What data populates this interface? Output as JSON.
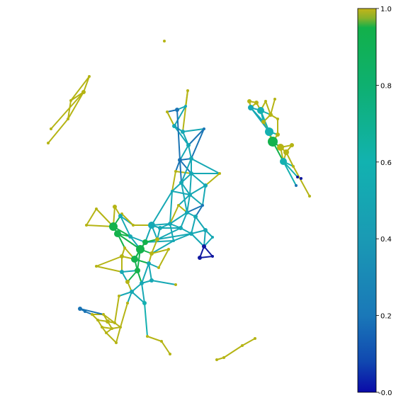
{
  "colorbar": {
    "min_label": "-0.0",
    "max_label": "1.0",
    "range": [
      0,
      1
    ],
    "ticks": [
      {
        "value": 0.2,
        "label": "0.2"
      },
      {
        "value": 0.4,
        "label": "0.4"
      },
      {
        "value": 0.6,
        "label": "0.6"
      },
      {
        "value": 0.8,
        "label": "0.8"
      }
    ],
    "gradient": [
      {
        "at": 0.0,
        "color": "#0a0aa8"
      },
      {
        "at": 0.08,
        "color": "#1048b0"
      },
      {
        "at": 0.2,
        "color": "#1a78b8"
      },
      {
        "at": 0.4,
        "color": "#1a9ab4"
      },
      {
        "at": 0.6,
        "color": "#12b2b0"
      },
      {
        "at": 0.8,
        "color": "#0eb070"
      },
      {
        "at": 0.95,
        "color": "#12b04a"
      },
      {
        "at": 0.975,
        "color": "#88b22a"
      },
      {
        "at": 1.0,
        "color": "#c4b418"
      }
    ]
  },
  "palette": {
    "olive": "#b5b414",
    "teal": "#16a8b4",
    "cyan": "#14b0b0",
    "green": "#14b24c",
    "navy": "#1018a0",
    "blue": "#1a74b4"
  },
  "graph": {
    "description_free": true,
    "nodes": [
      [
        "i1",
        232,
        58,
        "olive",
        2
      ],
      [
        "a1",
        126,
        108,
        "olive",
        2
      ],
      [
        "a2",
        118,
        130,
        "olive",
        3
      ],
      [
        "a3",
        100,
        142,
        "olive",
        2
      ],
      [
        "a4",
        96,
        168,
        "olive",
        2
      ],
      [
        "a5",
        72,
        182,
        "olive",
        2
      ],
      [
        "a6",
        68,
        202,
        "olive",
        2
      ],
      [
        "r1",
        352,
        143,
        "olive",
        3
      ],
      [
        "r2",
        362,
        145,
        "olive",
        3
      ],
      [
        "r3",
        375,
        143,
        "olive",
        2
      ],
      [
        "r4",
        388,
        140,
        "olive",
        2
      ],
      [
        "r5",
        354,
        152,
        "teal",
        4
      ],
      [
        "r6",
        368,
        156,
        "cyan",
        5
      ],
      [
        "r7",
        382,
        162,
        "olive",
        3
      ],
      [
        "r8",
        392,
        168,
        "olive",
        2
      ],
      [
        "r9",
        372,
        172,
        "olive",
        3
      ],
      [
        "r10",
        380,
        186,
        "cyan",
        6
      ],
      [
        "r11",
        392,
        190,
        "olive",
        3
      ],
      [
        "r12",
        385,
        200,
        "green",
        7
      ],
      [
        "r13",
        396,
        208,
        "olive",
        5
      ],
      [
        "r14",
        404,
        215,
        "olive",
        4
      ],
      [
        "r15",
        412,
        205,
        "olive",
        3
      ],
      [
        "r16",
        400,
        228,
        "cyan",
        5
      ],
      [
        "r17",
        414,
        235,
        "olive",
        2
      ],
      [
        "r18",
        420,
        250,
        "navy",
        2
      ],
      [
        "r19",
        425,
        252,
        "navy",
        2
      ],
      [
        "r20",
        418,
        262,
        "blue",
        2
      ],
      [
        "r21",
        437,
        277,
        "olive",
        2
      ],
      [
        "b1",
        306,
        508,
        "olive",
        2
      ],
      [
        "b2",
        316,
        505,
        "olive",
        2
      ],
      [
        "b3",
        342,
        488,
        "olive",
        2
      ],
      [
        "b4",
        360,
        478,
        "olive",
        2
      ],
      [
        "c1",
        265,
        128,
        "olive",
        2
      ],
      [
        "c2",
        262,
        150,
        "teal",
        2
      ],
      [
        "c3",
        250,
        155,
        "blue",
        3
      ],
      [
        "c4",
        236,
        158,
        "olive",
        2
      ],
      [
        "c5",
        246,
        178,
        "teal",
        3
      ],
      [
        "c6",
        258,
        186,
        "teal",
        3
      ],
      [
        "c7",
        288,
        182,
        "blue",
        2
      ],
      [
        "c8",
        266,
        205,
        "teal",
        3
      ],
      [
        "c9",
        254,
        226,
        "blue",
        3
      ],
      [
        "c10",
        270,
        224,
        "teal",
        3
      ],
      [
        "c11",
        248,
        242,
        "olive",
        2
      ],
      [
        "c12",
        270,
        245,
        "teal",
        3
      ],
      [
        "c13",
        310,
        245,
        "olive",
        2
      ],
      [
        "c14",
        256,
        258,
        "teal",
        3
      ],
      [
        "c15",
        290,
        262,
        "teal",
        3
      ],
      [
        "c16",
        243,
        270,
        "teal",
        2
      ],
      [
        "c17",
        268,
        275,
        "teal",
        3
      ],
      [
        "c18",
        252,
        290,
        "olive",
        2
      ],
      [
        "c19",
        286,
        290,
        "blue",
        2
      ],
      [
        "c20",
        264,
        300,
        "teal",
        3
      ],
      [
        "c21",
        276,
        306,
        "teal",
        3
      ],
      [
        "c22",
        240,
        316,
        "teal",
        3
      ],
      [
        "c23",
        255,
        322,
        "teal",
        3
      ],
      [
        "c24",
        290,
        325,
        "teal",
        3
      ],
      [
        "c25",
        300,
        335,
        "teal",
        2
      ],
      [
        "c26",
        270,
        330,
        "teal",
        3
      ],
      [
        "c27",
        245,
        340,
        "teal",
        2
      ],
      [
        "c28",
        288,
        348,
        "navy",
        3
      ],
      [
        "c29",
        282,
        364,
        "navy",
        3
      ],
      [
        "c30",
        300,
        362,
        "navy",
        2
      ],
      [
        "m1",
        136,
        295,
        "olive",
        2
      ],
      [
        "m2",
        162,
        292,
        "olive",
        3
      ],
      [
        "m3",
        172,
        302,
        "olive",
        2
      ],
      [
        "m4",
        122,
        318,
        "olive",
        2
      ],
      [
        "m5",
        160,
        320,
        "green",
        6
      ],
      [
        "m6",
        170,
        305,
        "teal",
        3
      ],
      [
        "m7",
        188,
        318,
        "olive",
        2
      ],
      [
        "m8",
        214,
        318,
        "teal",
        5
      ],
      [
        "m9",
        226,
        322,
        "teal",
        3
      ],
      [
        "m10",
        166,
        330,
        "green",
        5
      ],
      [
        "m11",
        184,
        334,
        "teal",
        3
      ],
      [
        "m12",
        205,
        342,
        "green",
        4
      ],
      [
        "m13",
        222,
        338,
        "olive",
        3
      ],
      [
        "m14",
        176,
        350,
        "olive",
        2
      ],
      [
        "m15",
        198,
        352,
        "green",
        6
      ],
      [
        "m16",
        214,
        358,
        "olive",
        3
      ],
      [
        "m17",
        238,
        352,
        "olive",
        2
      ],
      [
        "m18",
        172,
        362,
        "olive",
        3
      ],
      [
        "m19",
        190,
        366,
        "green",
        5
      ],
      [
        "m20",
        210,
        372,
        "teal",
        3
      ],
      [
        "m21",
        136,
        376,
        "olive",
        2
      ],
      [
        "m22",
        172,
        384,
        "teal",
        3
      ],
      [
        "m23",
        194,
        382,
        "green",
        4
      ],
      [
        "m24",
        224,
        378,
        "olive",
        2
      ],
      [
        "m25",
        180,
        398,
        "olive",
        3
      ],
      [
        "m26",
        200,
        400,
        "teal",
        3
      ],
      [
        "m27",
        214,
        396,
        "teal",
        3
      ],
      [
        "m28",
        248,
        402,
        "olive",
        2
      ],
      [
        "m29",
        186,
        412,
        "teal",
        3
      ],
      [
        "m30",
        168,
        418,
        "olive",
        2
      ],
      [
        "m31",
        204,
        428,
        "cyan",
        3
      ],
      [
        "m32",
        180,
        428,
        "olive",
        2
      ],
      [
        "s1",
        113,
        436,
        "blue",
        3
      ],
      [
        "s2",
        120,
        440,
        "blue",
        2
      ],
      [
        "s3",
        130,
        444,
        "olive",
        2
      ],
      [
        "s4",
        146,
        444,
        "olive",
        2
      ],
      [
        "s5",
        138,
        452,
        "olive",
        2
      ],
      [
        "s6",
        152,
        454,
        "olive",
        3
      ],
      [
        "s7",
        162,
        456,
        "olive",
        2
      ],
      [
        "s8",
        144,
        462,
        "olive",
        2
      ],
      [
        "s9",
        158,
        464,
        "olive",
        2
      ],
      [
        "s10",
        170,
        462,
        "olive",
        2
      ],
      [
        "s11",
        150,
        470,
        "olive",
        2
      ],
      [
        "s12",
        164,
        484,
        "olive",
        2
      ],
      [
        "s13",
        208,
        475,
        "olive",
        2
      ],
      [
        "s14",
        228,
        482,
        "olive",
        2
      ],
      [
        "s15",
        240,
        500,
        "olive",
        2
      ]
    ],
    "edges": [
      [
        "a1",
        "a2"
      ],
      [
        "a1",
        "a3"
      ],
      [
        "a2",
        "a3"
      ],
      [
        "a2",
        "a4"
      ],
      [
        "a3",
        "a4"
      ],
      [
        "a2",
        "a5"
      ],
      [
        "a4",
        "a6"
      ],
      [
        "r1",
        "r2"
      ],
      [
        "r1",
        "r5"
      ],
      [
        "r2",
        "r5"
      ],
      [
        "r2",
        "r6"
      ],
      [
        "r3",
        "r6"
      ],
      [
        "r4",
        "r7"
      ],
      [
        "r3",
        "r7"
      ],
      [
        "r5",
        "r6"
      ],
      [
        "r5",
        "r9"
      ],
      [
        "r6",
        "r9"
      ],
      [
        "r6",
        "r7"
      ],
      [
        "r7",
        "r8"
      ],
      [
        "r7",
        "r9"
      ],
      [
        "r8",
        "r11"
      ],
      [
        "r9",
        "r10"
      ],
      [
        "r6",
        "r10"
      ],
      [
        "r10",
        "r11"
      ],
      [
        "r10",
        "r12"
      ],
      [
        "r11",
        "r12"
      ],
      [
        "r12",
        "r13"
      ],
      [
        "r12",
        "r16"
      ],
      [
        "r13",
        "r14"
      ],
      [
        "r13",
        "r15"
      ],
      [
        "r14",
        "r15"
      ],
      [
        "r14",
        "r16"
      ],
      [
        "r13",
        "r16"
      ],
      [
        "r16",
        "r17"
      ],
      [
        "r16",
        "r18"
      ],
      [
        "r16",
        "r20"
      ],
      [
        "r18",
        "r19"
      ],
      [
        "r17",
        "r21"
      ],
      [
        "r14",
        "r17"
      ],
      [
        "r9",
        "r12"
      ],
      [
        "r5",
        "r10"
      ],
      [
        "b1",
        "b2"
      ],
      [
        "b2",
        "b3"
      ],
      [
        "b3",
        "b4"
      ],
      [
        "c1",
        "c2"
      ],
      [
        "c1",
        "c6"
      ],
      [
        "c2",
        "c3"
      ],
      [
        "c3",
        "c4"
      ],
      [
        "c2",
        "c5"
      ],
      [
        "c4",
        "c5"
      ],
      [
        "c5",
        "c6"
      ],
      [
        "c6",
        "c7"
      ],
      [
        "c6",
        "c8"
      ],
      [
        "c5",
        "c8"
      ],
      [
        "c7",
        "c8"
      ],
      [
        "c8",
        "c9"
      ],
      [
        "c8",
        "c10"
      ],
      [
        "c9",
        "c10"
      ],
      [
        "c9",
        "c11"
      ],
      [
        "c10",
        "c12"
      ],
      [
        "c11",
        "c12"
      ],
      [
        "c12",
        "c13"
      ],
      [
        "c10",
        "c13"
      ],
      [
        "c9",
        "c14"
      ],
      [
        "c12",
        "c14"
      ],
      [
        "c12",
        "c15"
      ],
      [
        "c14",
        "c16"
      ],
      [
        "c14",
        "c17"
      ],
      [
        "c15",
        "c17"
      ],
      [
        "c16",
        "c17"
      ],
      [
        "c17",
        "c18"
      ],
      [
        "c17",
        "c19"
      ],
      [
        "c18",
        "c20"
      ],
      [
        "c19",
        "c20"
      ],
      [
        "c20",
        "c21"
      ],
      [
        "c17",
        "c20"
      ],
      [
        "c20",
        "c22"
      ],
      [
        "c20",
        "c23"
      ],
      [
        "c21",
        "c24"
      ],
      [
        "c22",
        "c23"
      ],
      [
        "c23",
        "c26"
      ],
      [
        "c24",
        "c25"
      ],
      [
        "c24",
        "c26"
      ],
      [
        "c26",
        "c27"
      ],
      [
        "c24",
        "c28"
      ],
      [
        "c26",
        "c28"
      ],
      [
        "c28",
        "c29"
      ],
      [
        "c28",
        "c30"
      ],
      [
        "c29",
        "c30"
      ],
      [
        "c15",
        "c19"
      ],
      [
        "c9",
        "c12"
      ],
      [
        "c10",
        "c14"
      ],
      [
        "c11",
        "c16"
      ],
      [
        "c13",
        "c15"
      ],
      [
        "c3",
        "c9"
      ],
      [
        "c7",
        "c10"
      ],
      [
        "c19",
        "c21"
      ],
      [
        "c21",
        "c26"
      ],
      [
        "c14",
        "c20"
      ],
      [
        "c16",
        "c22"
      ],
      [
        "c25",
        "c28"
      ],
      [
        "c22",
        "c27"
      ],
      [
        "c12",
        "c17"
      ],
      [
        "c18",
        "c22"
      ],
      [
        "c22",
        "m8"
      ],
      [
        "c23",
        "m9"
      ],
      [
        "c27",
        "m12"
      ],
      [
        "c26",
        "m13"
      ],
      [
        "c22",
        "m9"
      ],
      [
        "c27",
        "m16"
      ],
      [
        "c16",
        "m8"
      ],
      [
        "c23",
        "m13"
      ],
      [
        "m1",
        "m5"
      ],
      [
        "m2",
        "m5"
      ],
      [
        "m2",
        "m6"
      ],
      [
        "m3",
        "m6"
      ],
      [
        "m4",
        "m5"
      ],
      [
        "m5",
        "m6"
      ],
      [
        "m5",
        "m10"
      ],
      [
        "m6",
        "m7"
      ],
      [
        "m7",
        "m8"
      ],
      [
        "m8",
        "m9"
      ],
      [
        "m6",
        "m11"
      ],
      [
        "m10",
        "m11"
      ],
      [
        "m11",
        "m12"
      ],
      [
        "m8",
        "m12"
      ],
      [
        "m9",
        "m13"
      ],
      [
        "m12",
        "m13"
      ],
      [
        "m10",
        "m14"
      ],
      [
        "m11",
        "m15"
      ],
      [
        "m12",
        "m15"
      ],
      [
        "m13",
        "m16"
      ],
      [
        "m15",
        "m16"
      ],
      [
        "m16",
        "m17"
      ],
      [
        "m14",
        "m18"
      ],
      [
        "m15",
        "m19"
      ],
      [
        "m18",
        "m19"
      ],
      [
        "m19",
        "m20"
      ],
      [
        "m16",
        "m20"
      ],
      [
        "m1",
        "m4"
      ],
      [
        "m21",
        "m18"
      ],
      [
        "m18",
        "m22"
      ],
      [
        "m19",
        "m23"
      ],
      [
        "m22",
        "m23"
      ],
      [
        "m20",
        "m24"
      ],
      [
        "m23",
        "m25"
      ],
      [
        "m22",
        "m25"
      ],
      [
        "m23",
        "m26"
      ],
      [
        "m20",
        "m27"
      ],
      [
        "m26",
        "m27"
      ],
      [
        "m27",
        "m28"
      ],
      [
        "m25",
        "m29"
      ],
      [
        "m26",
        "m29"
      ],
      [
        "m29",
        "m30"
      ],
      [
        "m29",
        "m31"
      ],
      [
        "m26",
        "m31"
      ],
      [
        "m29",
        "m32"
      ],
      [
        "m10",
        "m15"
      ],
      [
        "m5",
        "m11"
      ],
      [
        "m8",
        "m13"
      ],
      [
        "m12",
        "m19"
      ],
      [
        "m15",
        "m23"
      ],
      [
        "m17",
        "m24"
      ],
      [
        "m21",
        "m22"
      ],
      [
        "m3",
        "m7"
      ],
      [
        "m14",
        "m19"
      ],
      [
        "m20",
        "m26"
      ],
      [
        "m31",
        "s13"
      ],
      [
        "s13",
        "s14"
      ],
      [
        "s14",
        "s15"
      ],
      [
        "m30",
        "s7"
      ],
      [
        "m32",
        "s10"
      ],
      [
        "s1",
        "s2"
      ],
      [
        "s2",
        "s3"
      ],
      [
        "s3",
        "s4"
      ],
      [
        "s3",
        "s5"
      ],
      [
        "s4",
        "s6"
      ],
      [
        "s5",
        "s6"
      ],
      [
        "s6",
        "s7"
      ],
      [
        "s5",
        "s8"
      ],
      [
        "s6",
        "s9"
      ],
      [
        "s7",
        "s10"
      ],
      [
        "s8",
        "s9"
      ],
      [
        "s9",
        "s10"
      ],
      [
        "s8",
        "s11"
      ],
      [
        "s9",
        "s11"
      ],
      [
        "s10",
        "s12"
      ],
      [
        "s11",
        "s12"
      ],
      [
        "s4",
        "s7"
      ],
      [
        "s1",
        "s4"
      ]
    ]
  }
}
